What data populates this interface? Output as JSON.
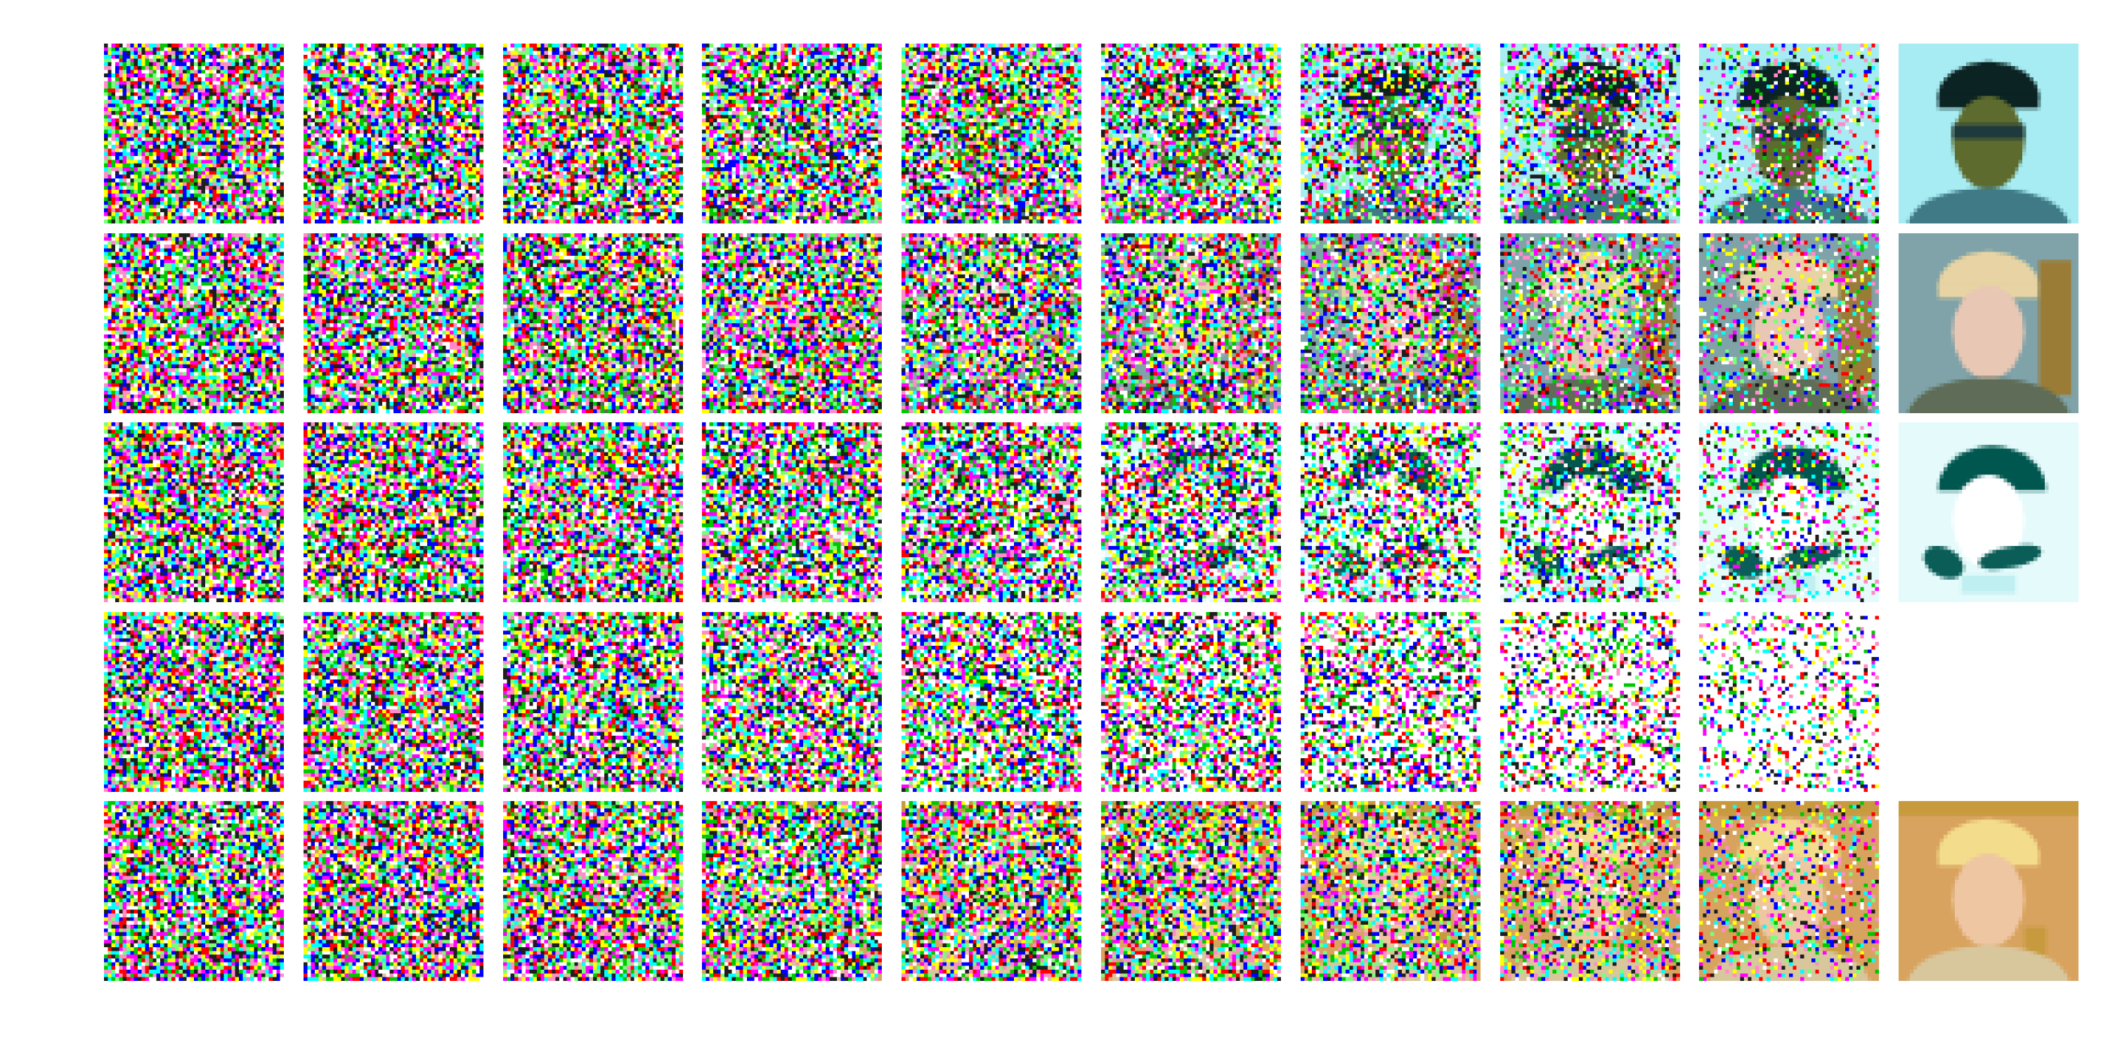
{
  "figure": {
    "rows": [
      {
        "subject": "person-sunglasses",
        "background": "#a6ecf2",
        "tones": [
          {
            "color": "#0b2322",
            "shape": "hair"
          },
          {
            "color": "#5d6b2e",
            "shape": "face"
          },
          {
            "color": "#1e3a3c",
            "shape": "sunglasses"
          },
          {
            "color": "#3f7a86",
            "shape": "shirt"
          }
        ],
        "final_tile_empty": false
      },
      {
        "subject": "blonde-woman",
        "background": "#7fa3a8",
        "tones": [
          {
            "color": "#e7d3a3",
            "shape": "hair"
          },
          {
            "color": "#e8c7b5",
            "shape": "face"
          },
          {
            "color": "#9b7c37",
            "shape": "side-object"
          },
          {
            "color": "#5f6d58",
            "shape": "shoulder"
          }
        ],
        "final_tile_empty": false
      },
      {
        "subject": "dark-hat-figure",
        "background": "#e4fafb",
        "tones": [
          {
            "color": "#00574f",
            "shape": "hat"
          },
          {
            "color": "#ffffff",
            "shape": "face"
          },
          {
            "color": "#0b5d57",
            "shape": "hands"
          },
          {
            "color": "#bfeff0",
            "shape": "collar"
          }
        ],
        "final_tile_empty": false
      },
      {
        "subject": "blank",
        "background": "#ffffff",
        "tones": [],
        "final_tile_empty": true
      },
      {
        "subject": "blonde-boy",
        "background": "#d8a35f",
        "tones": [
          {
            "color": "#f3dc8c",
            "shape": "hair"
          },
          {
            "color": "#eec6a2",
            "shape": "face"
          },
          {
            "color": "#c79a3e",
            "shape": "frame"
          },
          {
            "color": "#d8c69c",
            "shape": "shoulder"
          }
        ],
        "final_tile_empty": false
      }
    ],
    "noise_levels": [
      1.0,
      0.98,
      0.96,
      0.93,
      0.88,
      0.8,
      0.68,
      0.52,
      0.32,
      0.0
    ]
  }
}
